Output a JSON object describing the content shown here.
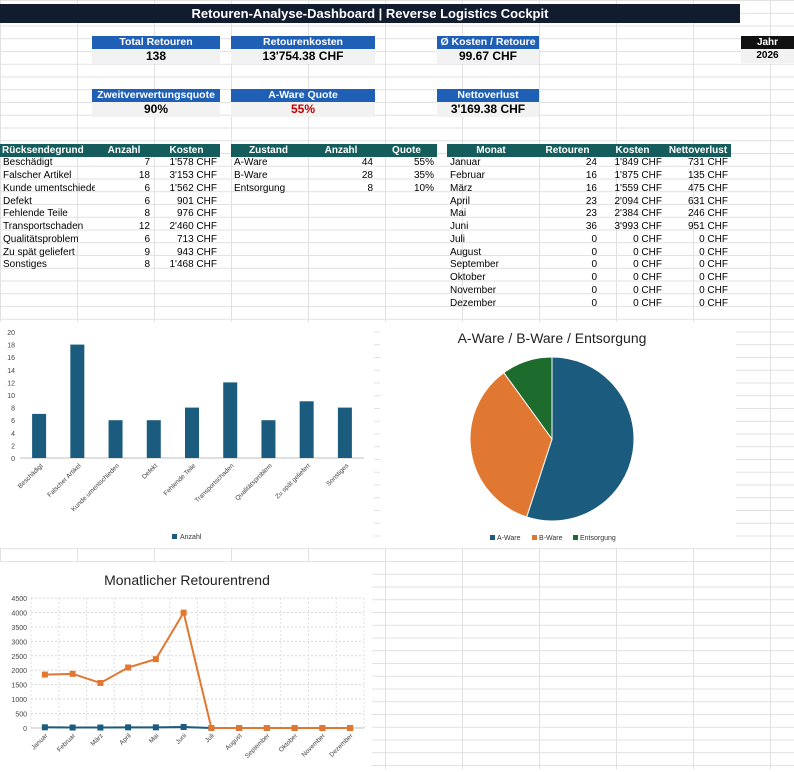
{
  "title": "Retouren-Analyse-Dashboard | Reverse Logistics Cockpit",
  "year": {
    "label": "Jahr",
    "value": "2026"
  },
  "kpis": {
    "total_label": "Total Retouren",
    "total_value": "138",
    "kosten_label": "Retourenkosten",
    "kosten_value": "13'754.38 CHF",
    "avg_label": "Ø Kosten / Retoure",
    "avg_value": "99.67 CHF",
    "zweit_label": "Zweitverwertungsquote",
    "zweit_value": "90%",
    "aware_label": "A-Ware Quote",
    "aware_value": "55%",
    "netto_label": "Nettoverlust",
    "netto_value": "3'169.38 CHF"
  },
  "reasons": {
    "headers": [
      "Rücksendegrund",
      "Anzahl",
      "Kosten"
    ],
    "rows": [
      [
        "Beschädigt",
        "7",
        "1'578 CHF"
      ],
      [
        "Falscher Artikel",
        "18",
        "3'153 CHF"
      ],
      [
        "Kunde umentschieden",
        "6",
        "1'562 CHF"
      ],
      [
        "Defekt",
        "6",
        "901 CHF"
      ],
      [
        "Fehlende Teile",
        "8",
        "976 CHF"
      ],
      [
        "Transportschaden",
        "12",
        "2'460 CHF"
      ],
      [
        "Qualitätsproblem",
        "6",
        "713 CHF"
      ],
      [
        "Zu spät geliefert",
        "9",
        "943 CHF"
      ],
      [
        "Sonstiges",
        "8",
        "1'468 CHF"
      ]
    ]
  },
  "condition": {
    "headers": [
      "Zustand",
      "Anzahl",
      "Quote"
    ],
    "rows": [
      [
        "A-Ware",
        "44",
        "55%"
      ],
      [
        "B-Ware",
        "28",
        "35%"
      ],
      [
        "Entsorgung",
        "8",
        "10%"
      ]
    ]
  },
  "monthly": {
    "headers": [
      "Monat",
      "Retouren",
      "Kosten",
      "Nettoverlust"
    ],
    "rows": [
      [
        "Januar",
        "24",
        "1'849 CHF",
        "731 CHF"
      ],
      [
        "Februar",
        "16",
        "1'875 CHF",
        "135 CHF"
      ],
      [
        "März",
        "16",
        "1'559 CHF",
        "475 CHF"
      ],
      [
        "April",
        "23",
        "2'094 CHF",
        "631 CHF"
      ],
      [
        "Mai",
        "23",
        "2'384 CHF",
        "246 CHF"
      ],
      [
        "Juni",
        "36",
        "3'993 CHF",
        "951 CHF"
      ],
      [
        "Juli",
        "0",
        "0 CHF",
        "0 CHF"
      ],
      [
        "August",
        "0",
        "0 CHF",
        "0 CHF"
      ],
      [
        "September",
        "0",
        "0 CHF",
        "0 CHF"
      ],
      [
        "Oktober",
        "0",
        "0 CHF",
        "0 CHF"
      ],
      [
        "November",
        "0",
        "0 CHF",
        "0 CHF"
      ],
      [
        "Dezember",
        "0",
        "0 CHF",
        "0 CHF"
      ]
    ]
  },
  "chart_data": [
    {
      "type": "bar",
      "title": "",
      "categories": [
        "Beschädigt",
        "Falscher Artikel",
        "Kunde umentschieden",
        "Defekt",
        "Fehlende Teile",
        "Transportschaden",
        "Qualitätsproblem",
        "Zu spät geliefert",
        "Sonstiges"
      ],
      "series": [
        {
          "name": "Anzahl",
          "values": [
            7,
            18,
            6,
            6,
            8,
            12,
            6,
            9,
            8
          ]
        }
      ],
      "ylim": [
        0,
        20
      ],
      "yticks": [
        0,
        2,
        4,
        6,
        8,
        10,
        12,
        14,
        16,
        18,
        20
      ],
      "legend": "bottom",
      "color": "#1b5b7e"
    },
    {
      "type": "pie",
      "title": "A-Ware / B-Ware / Entsorgung",
      "categories": [
        "A-Ware",
        "B-Ware",
        "Entsorgung"
      ],
      "values": [
        44,
        28,
        8
      ],
      "colors": [
        "#1b5b7e",
        "#e07832",
        "#1e6b2e"
      ],
      "legend": "bottom"
    },
    {
      "type": "line",
      "title": "Monatlicher Retourentrend",
      "categories": [
        "Januar",
        "Februar",
        "März",
        "April",
        "Mai",
        "Juni",
        "Juli",
        "August",
        "September",
        "Oktober",
        "November",
        "Dezember"
      ],
      "series": [
        {
          "values": [
            24,
            16,
            16,
            23,
            23,
            36,
            0,
            0,
            0,
            0,
            0,
            0
          ],
          "color": "#1b5b7e"
        },
        {
          "values": [
            1849,
            1875,
            1559,
            2094,
            2384,
            3993,
            0,
            0,
            0,
            0,
            0,
            0
          ],
          "color": "#e07832"
        }
      ],
      "ylim": [
        0,
        4500
      ],
      "yticks": [
        0,
        500,
        1000,
        1500,
        2000,
        2500,
        3000,
        3500,
        4000,
        4500
      ],
      "grid": true
    }
  ]
}
